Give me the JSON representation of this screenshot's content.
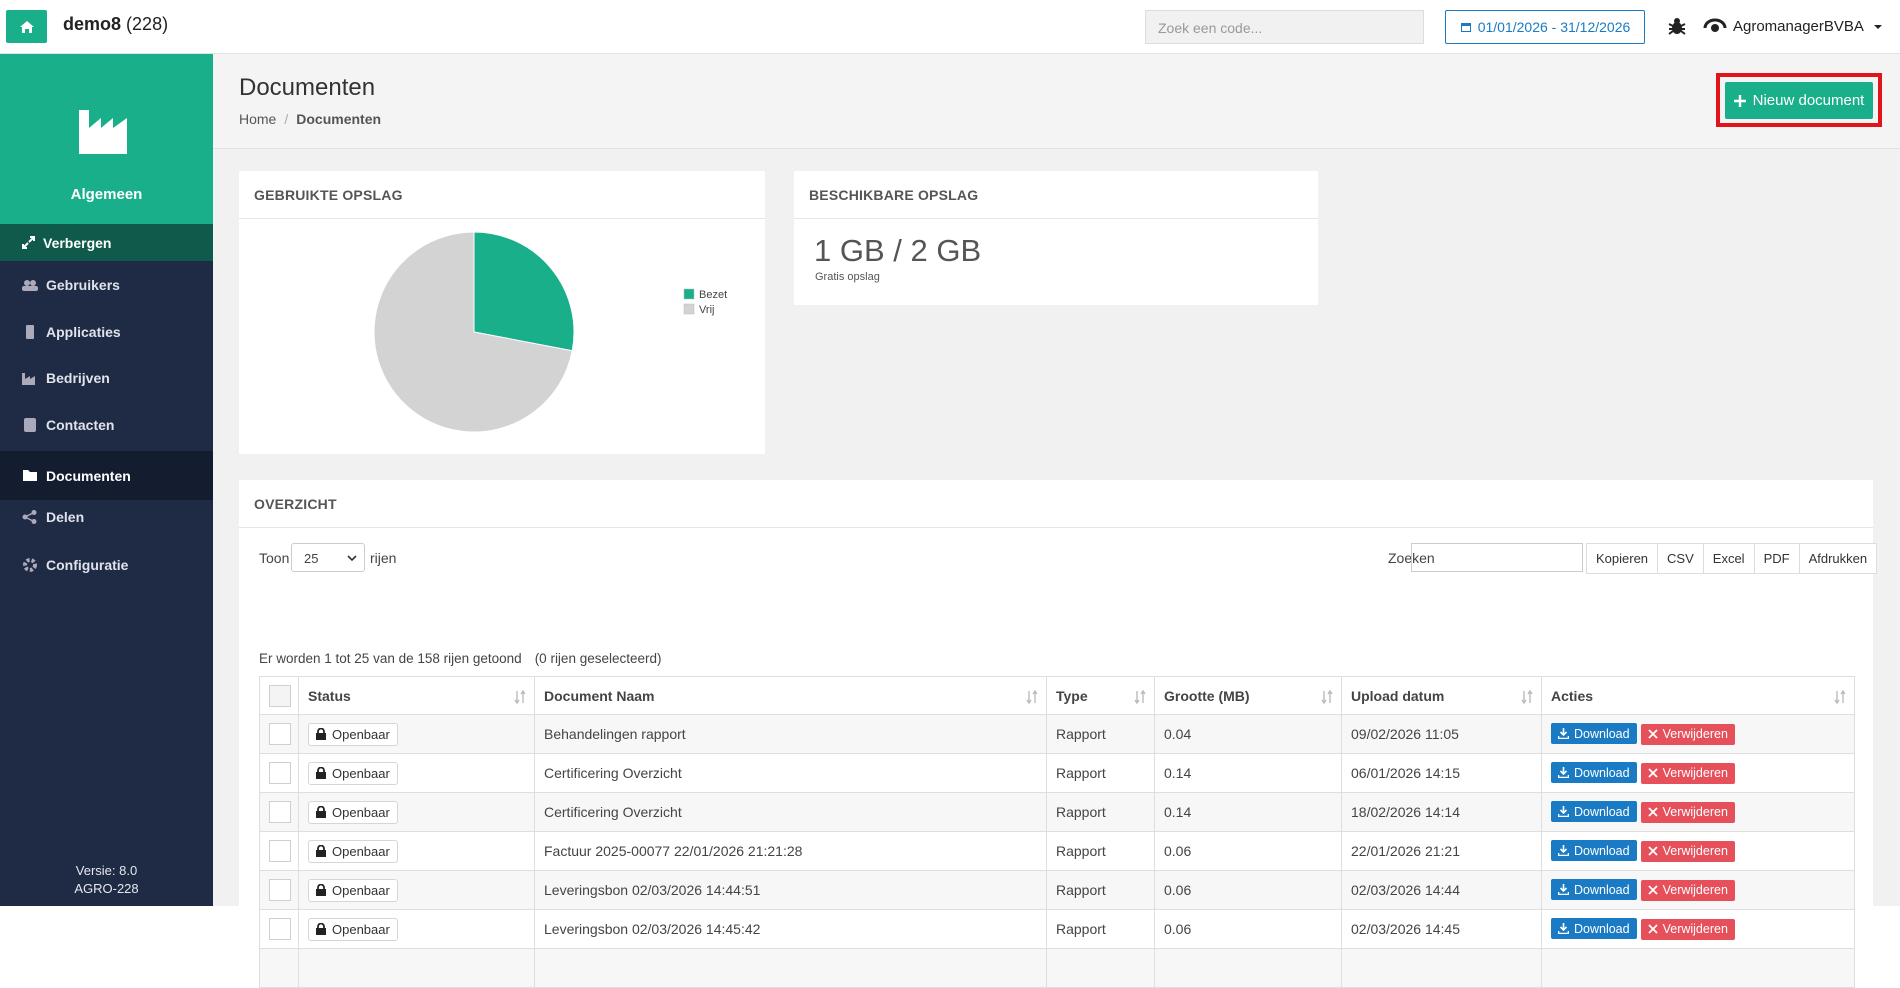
{
  "topbar": {
    "app": "demo8",
    "count": "(228)",
    "search_placeholder": "Zoek een code...",
    "date_range": "01/01/2026 - 31/12/2026",
    "user": "AgromanagerBVBA"
  },
  "sidebar": {
    "section": "Algemeen",
    "toggle": "Verbergen",
    "menu": [
      "Gebruikers",
      "Applicaties",
      "Bedrijven",
      "Contacten",
      "Documenten",
      "Delen",
      "Configuratie"
    ],
    "version": "Versie: 8.0",
    "build": "AGRO-228"
  },
  "page": {
    "title": "Documenten",
    "breadcrumb": [
      "Home",
      "Documenten"
    ],
    "new_button": "Nieuw document"
  },
  "chart_data": {
    "type": "pie",
    "title": "GEBRUIKTE OPSLAG",
    "categories": [
      "Bezet",
      "Vrij"
    ],
    "values": [
      28,
      72
    ],
    "colors": [
      "#1aaf8b",
      "#d3d3d3"
    ]
  },
  "storage": {
    "title": "BESCHIKBARE OPSLAG",
    "value": "1 GB / 2 GB",
    "note": "Gratis opslag"
  },
  "overview": {
    "title": "OVERZICHT",
    "show_label": "Toon",
    "page_size": "25",
    "rows_label": "rijen",
    "search_label": "Zoeken",
    "export_buttons": [
      "Kopieren",
      "CSV",
      "Excel",
      "PDF",
      "Afdrukken"
    ],
    "info": "Er worden 1 tot 25 van de 158 rijen getoond",
    "selected": "(0 rijen geselecteerd)",
    "table": {
      "columns": [
        "Status",
        "Document Naam",
        "Type",
        "Grootte (MB)",
        "Upload datum",
        "Acties"
      ],
      "actions": [
        "Download",
        "Verwijderen"
      ],
      "rows": [
        [
          "Openbaar",
          "Behandelingen rapport",
          "Rapport",
          "0.04",
          "09/02/2026 11:05"
        ],
        [
          "Openbaar",
          "Certificering Overzicht",
          "Rapport",
          "0.14",
          "06/01/2026 14:15"
        ],
        [
          "Openbaar",
          "Certificering Overzicht",
          "Rapport",
          "0.14",
          "18/02/2026 14:14"
        ],
        [
          "Openbaar",
          "Factuur 2025-00077 22/01/2026 21:21:28",
          "Rapport",
          "0.06",
          "22/01/2026 21:21"
        ],
        [
          "Openbaar",
          "Leveringsbon 02/03/2026 14:44:51",
          "Rapport",
          "0.06",
          "02/03/2026 14:44"
        ],
        [
          "Openbaar",
          "Leveringsbon 02/03/2026 14:45:42",
          "Rapport",
          "0.06",
          "02/03/2026 14:45"
        ]
      ]
    }
  }
}
